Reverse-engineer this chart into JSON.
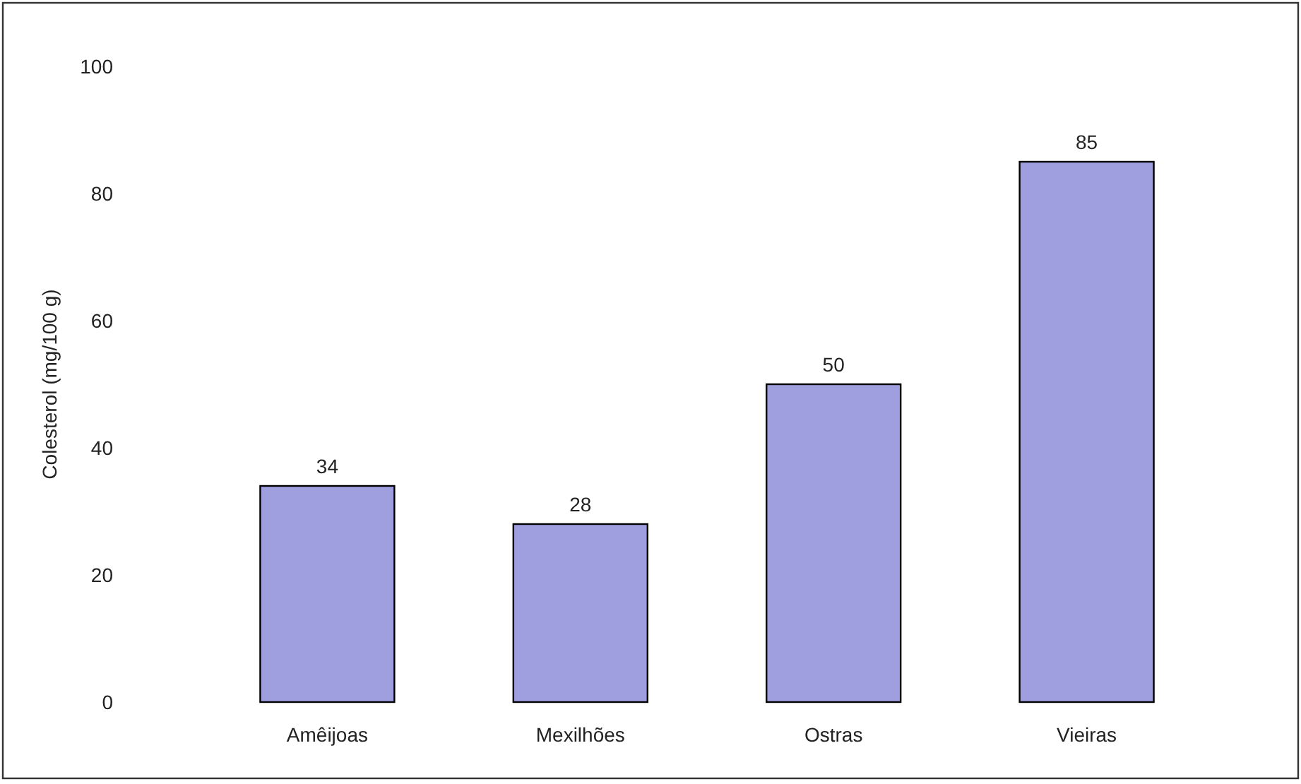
{
  "chart_data": {
    "type": "bar",
    "ylabel": "Colesterol (mg/100 g)",
    "categories": [
      "Amêijoas",
      "Mexilhões",
      "Ostras",
      "Vieiras"
    ],
    "values": [
      34,
      28,
      50,
      85
    ],
    "color": "#9f9fe0",
    "ylim": [
      0,
      100
    ],
    "yticks": [
      0,
      20,
      40,
      60,
      80,
      100
    ],
    "data_labels": true
  }
}
